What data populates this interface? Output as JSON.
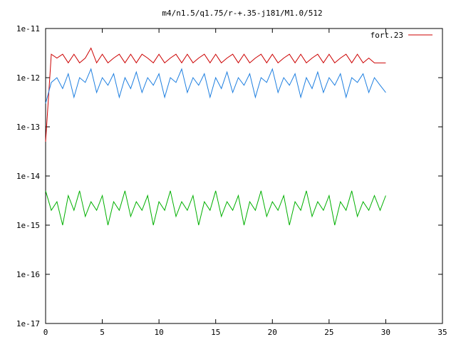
{
  "chart_data": {
    "type": "line",
    "title": "m4/n1.5/q1.75/r-+.35-j181/M1.0/512",
    "xlabel": "",
    "ylabel": "",
    "xlim": [
      0,
      35
    ],
    "ylim": [
      1e-17,
      1e-11
    ],
    "yscale": "log",
    "grid": false,
    "legend_position": "top-right",
    "x_ticks": [
      0,
      5,
      10,
      15,
      20,
      25,
      30,
      35
    ],
    "x_tick_labels": [
      "0",
      "5",
      "10",
      "15",
      "20",
      "25",
      "30",
      "35"
    ],
    "y_ticks": [
      1e-17,
      1e-16,
      1e-15,
      1e-14,
      1e-13,
      1e-12,
      1e-11
    ],
    "y_tick_labels": [
      "1e-17",
      "1e-16",
      "1e-15",
      "1e-14",
      "1e-13",
      "1e-12",
      "1e-11"
    ],
    "series": [
      {
        "name": "fort.23",
        "color": "#cc0000",
        "x": [
          0,
          0.5,
          1,
          1.5,
          2,
          2.5,
          3,
          3.5,
          4,
          4.5,
          5,
          5.5,
          6,
          6.5,
          7,
          7.5,
          8,
          8.5,
          9,
          9.5,
          10,
          10.5,
          11,
          11.5,
          12,
          12.5,
          13,
          13.5,
          14,
          14.5,
          15,
          15.5,
          16,
          16.5,
          17,
          17.5,
          18,
          18.5,
          19,
          19.5,
          20,
          20.5,
          21,
          21.5,
          22,
          22.5,
          23,
          23.5,
          24,
          24.5,
          25,
          25.5,
          26,
          26.5,
          27,
          27.5,
          28,
          28.5,
          29,
          29.5,
          30
        ],
        "y": [
          5e-14,
          3e-12,
          2.5e-12,
          3e-12,
          2e-12,
          3e-12,
          2e-12,
          2.5e-12,
          4e-12,
          2e-12,
          3e-12,
          2e-12,
          2.5e-12,
          3e-12,
          2e-12,
          3e-12,
          2e-12,
          3e-12,
          2.5e-12,
          2e-12,
          3e-12,
          2e-12,
          2.5e-12,
          3e-12,
          2e-12,
          3e-12,
          2e-12,
          2.5e-12,
          3e-12,
          2e-12,
          3e-12,
          2e-12,
          2.5e-12,
          3e-12,
          2e-12,
          3e-12,
          2e-12,
          2.5e-12,
          3e-12,
          2e-12,
          3e-12,
          2e-12,
          2.5e-12,
          3e-12,
          2e-12,
          3e-12,
          2e-12,
          2.5e-12,
          3e-12,
          2e-12,
          3e-12,
          2e-12,
          2.5e-12,
          3e-12,
          2e-12,
          3e-12,
          2e-12,
          2.5e-12,
          2e-12,
          2e-12,
          2e-12
        ]
      },
      {
        "name": "",
        "color": "#1e7fe0",
        "x": [
          0,
          0.5,
          1,
          1.5,
          2,
          2.5,
          3,
          3.5,
          4,
          4.5,
          5,
          5.5,
          6,
          6.5,
          7,
          7.5,
          8,
          8.5,
          9,
          9.5,
          10,
          10.5,
          11,
          11.5,
          12,
          12.5,
          13,
          13.5,
          14,
          14.5,
          15,
          15.5,
          16,
          16.5,
          17,
          17.5,
          18,
          18.5,
          19,
          19.5,
          20,
          20.5,
          21,
          21.5,
          22,
          22.5,
          23,
          23.5,
          24,
          24.5,
          25,
          25.5,
          26,
          26.5,
          27,
          27.5,
          28,
          28.5,
          29,
          29.5,
          30
        ],
        "y": [
          3e-13,
          8e-13,
          1e-12,
          6e-13,
          1.2e-12,
          4e-13,
          1e-12,
          8e-13,
          1.5e-12,
          5e-13,
          1e-12,
          7e-13,
          1.2e-12,
          4e-13,
          1e-12,
          6e-13,
          1.3e-12,
          5e-13,
          1e-12,
          7e-13,
          1.2e-12,
          4e-13,
          1e-12,
          8e-13,
          1.5e-12,
          5e-13,
          1e-12,
          7e-13,
          1.2e-12,
          4e-13,
          1e-12,
          6e-13,
          1.3e-12,
          5e-13,
          1e-12,
          7e-13,
          1.2e-12,
          4e-13,
          1e-12,
          8e-13,
          1.5e-12,
          5e-13,
          1e-12,
          7e-13,
          1.2e-12,
          4e-13,
          1e-12,
          6e-13,
          1.3e-12,
          5e-13,
          1e-12,
          7e-13,
          1.2e-12,
          4e-13,
          1e-12,
          8e-13,
          1.2e-12,
          5e-13,
          1e-12,
          7e-13,
          5e-13
        ]
      },
      {
        "name": "",
        "color": "#00b000",
        "x": [
          0,
          0.5,
          1,
          1.5,
          2,
          2.5,
          3,
          3.5,
          4,
          4.5,
          5,
          5.5,
          6,
          6.5,
          7,
          7.5,
          8,
          8.5,
          9,
          9.5,
          10,
          10.5,
          11,
          11.5,
          12,
          12.5,
          13,
          13.5,
          14,
          14.5,
          15,
          15.5,
          16,
          16.5,
          17,
          17.5,
          18,
          18.5,
          19,
          19.5,
          20,
          20.5,
          21,
          21.5,
          22,
          22.5,
          23,
          23.5,
          24,
          24.5,
          25,
          25.5,
          26,
          26.5,
          27,
          27.5,
          28,
          28.5,
          29,
          29.5,
          30
        ],
        "y": [
          5e-15,
          2e-15,
          3e-15,
          1e-15,
          4e-15,
          2e-15,
          5e-15,
          1.5e-15,
          3e-15,
          2e-15,
          4e-15,
          1e-15,
          3e-15,
          2e-15,
          5e-15,
          1.5e-15,
          3e-15,
          2e-15,
          4e-15,
          1e-15,
          3e-15,
          2e-15,
          5e-15,
          1.5e-15,
          3e-15,
          2e-15,
          4e-15,
          1e-15,
          3e-15,
          2e-15,
          5e-15,
          1.5e-15,
          3e-15,
          2e-15,
          4e-15,
          1e-15,
          3e-15,
          2e-15,
          5e-15,
          1.5e-15,
          3e-15,
          2e-15,
          4e-15,
          1e-15,
          3e-15,
          2e-15,
          5e-15,
          1.5e-15,
          3e-15,
          2e-15,
          4e-15,
          1e-15,
          3e-15,
          2e-15,
          5e-15,
          1.5e-15,
          3e-15,
          2e-15,
          4e-15,
          2e-15,
          4e-15
        ]
      }
    ]
  }
}
